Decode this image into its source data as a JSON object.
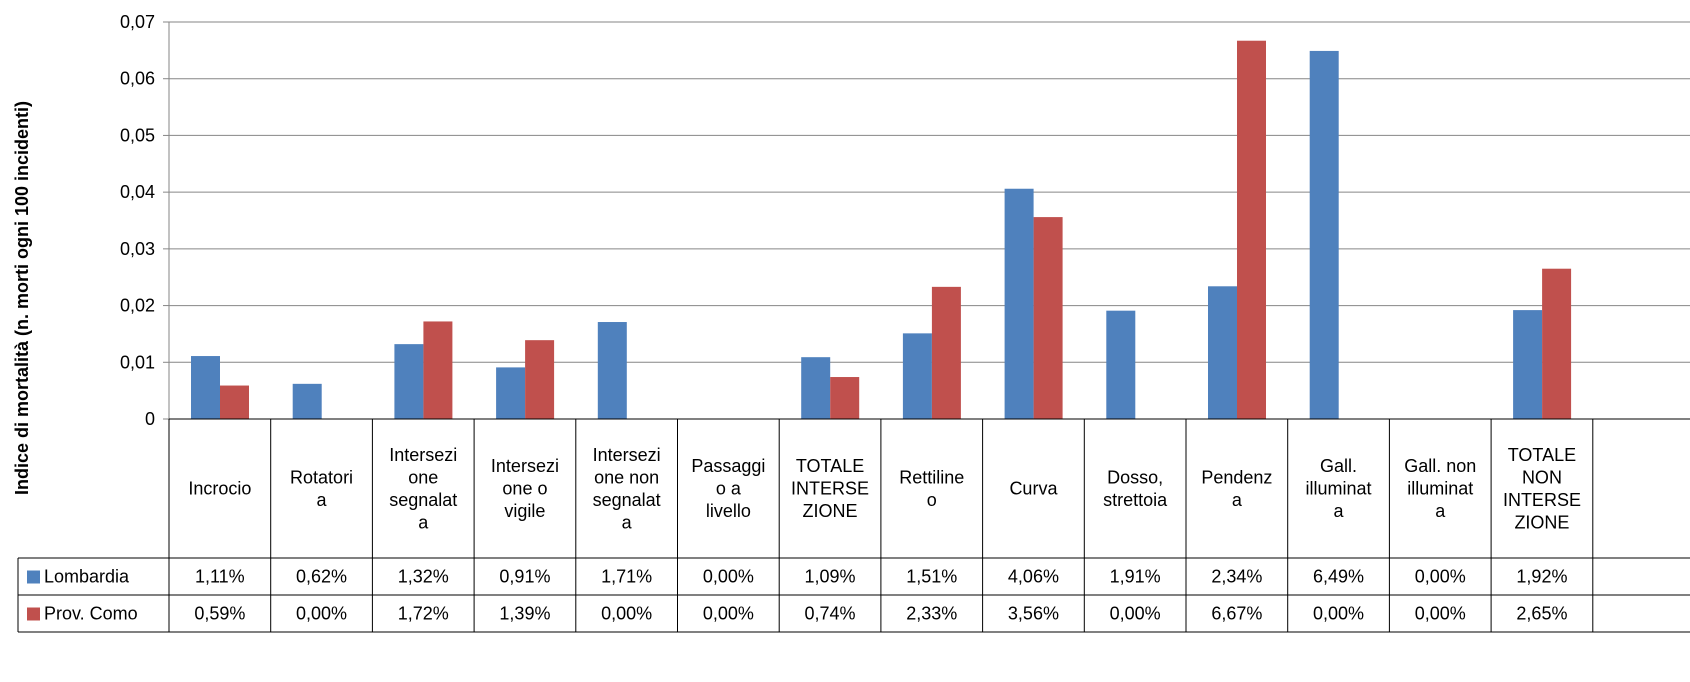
{
  "chart_data": {
    "type": "bar",
    "title": "",
    "xlabel": "",
    "ylabel": "Indice di mortalità (n. morti ogni 100 incidenti)",
    "ylim": [
      0,
      0.07
    ],
    "yticks": [
      "0",
      "0,01",
      "0,02",
      "0,03",
      "0,04",
      "0,05",
      "0,06",
      "0,07"
    ],
    "grid": true,
    "legend_position": "data-table",
    "categories": [
      [
        "Incrocio"
      ],
      [
        "Rotatori",
        "a"
      ],
      [
        "Intersezi",
        "one",
        "segnalat",
        "a"
      ],
      [
        "Intersezi",
        "one o",
        "vigile"
      ],
      [
        "Intersezi",
        "one non",
        "segnalat",
        "a"
      ],
      [
        "Passaggi",
        "o a",
        "livello"
      ],
      [
        "TOTALE",
        "INTERSE",
        "ZIONE"
      ],
      [
        "Rettiline",
        "o"
      ],
      [
        "Curva"
      ],
      [
        "Dosso,",
        "strettoia"
      ],
      [
        "Pendenz",
        "a"
      ],
      [
        "Gall.",
        "illuminat",
        "a"
      ],
      [
        "Gall. non",
        "illuminat",
        "a"
      ],
      [
        "TOTALE",
        "NON",
        "INTERSE",
        "ZIONE"
      ]
    ],
    "series": [
      {
        "name": "Lombardia",
        "color": "#4F81BD",
        "values": [
          0.0111,
          0.0062,
          0.0132,
          0.0091,
          0.0171,
          0.0,
          0.0109,
          0.0151,
          0.0406,
          0.0191,
          0.0234,
          0.0649,
          0.0,
          0.0192
        ],
        "labels": [
          "1,11%",
          "0,62%",
          "1,32%",
          "0,91%",
          "1,71%",
          "0,00%",
          "1,09%",
          "1,51%",
          "4,06%",
          "1,91%",
          "2,34%",
          "6,49%",
          "0,00%",
          "1,92%"
        ]
      },
      {
        "name": "Prov. Como",
        "color": "#C0504D",
        "values": [
          0.0059,
          0.0,
          0.0172,
          0.0139,
          0.0,
          0.0,
          0.0074,
          0.0233,
          0.0356,
          0.0,
          0.0667,
          0.0,
          0.0,
          0.0265
        ],
        "labels": [
          "0,59%",
          "0,00%",
          "1,72%",
          "1,39%",
          "0,00%",
          "0,00%",
          "0,74%",
          "2,33%",
          "3,56%",
          "0,00%",
          "6,67%",
          "0,00%",
          "0,00%",
          "2,65%"
        ]
      }
    ]
  }
}
